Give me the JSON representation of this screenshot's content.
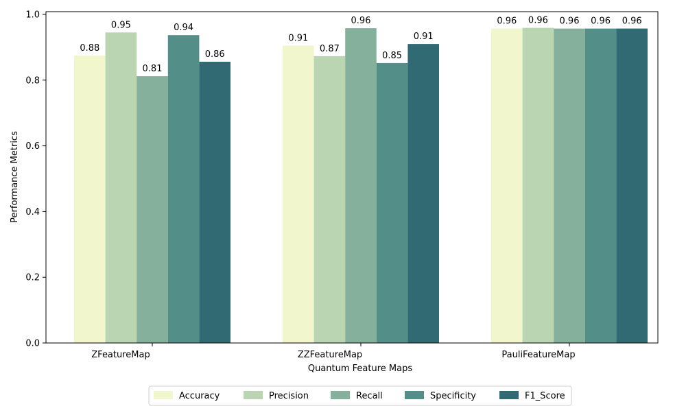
{
  "chart_data": {
    "type": "bar",
    "categories": [
      "ZFeatureMap",
      "ZZFeatureMap",
      "PauliFeatureMap"
    ],
    "series": [
      {
        "name": "Accuracy",
        "values": [
          0.875,
          0.905,
          0.957
        ],
        "labels": [
          "0.88",
          "0.91",
          "0.96"
        ],
        "color": "#f2f6cc"
      },
      {
        "name": "Precision",
        "values": [
          0.945,
          0.873,
          0.959
        ],
        "labels": [
          "0.95",
          "0.87",
          "0.96"
        ],
        "color": "#bad5b2"
      },
      {
        "name": "Recall",
        "values": [
          0.812,
          0.958,
          0.957
        ],
        "labels": [
          "0.81",
          "0.96",
          "0.96"
        ],
        "color": "#85b09c"
      },
      {
        "name": "Specificity",
        "values": [
          0.937,
          0.852,
          0.957
        ],
        "labels": [
          "0.94",
          "0.85",
          "0.96"
        ],
        "color": "#548e89"
      },
      {
        "name": "F1_Score",
        "values": [
          0.856,
          0.91,
          0.957
        ],
        "labels": [
          "0.86",
          "0.91",
          "0.96"
        ],
        "color": "#326a74"
      }
    ],
    "xlabel": "Quantum Feature Maps",
    "ylabel": "Performance Metrics",
    "ylim": [
      0,
      1.0
    ],
    "yticks": [
      0.0,
      0.2,
      0.4,
      0.6,
      0.8,
      1.0
    ],
    "ytick_labels": [
      "0.0",
      "0.2",
      "0.4",
      "0.6",
      "0.8",
      "1.0"
    ],
    "grid": false,
    "legend_position": "bottom-center"
  }
}
